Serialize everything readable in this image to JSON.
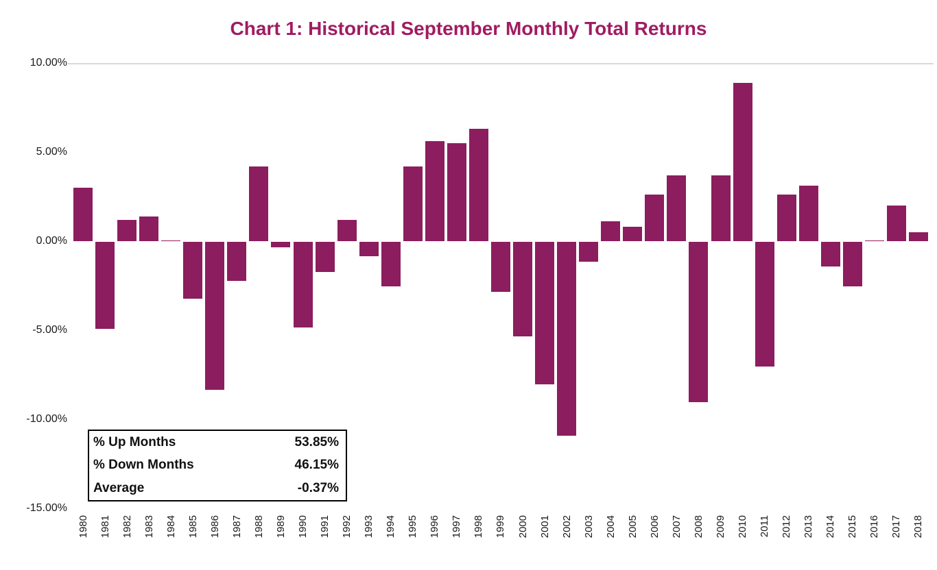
{
  "chart_data": {
    "type": "bar",
    "title": "Chart 1: Historical September Monthly Total Returns",
    "xlabel": "",
    "ylabel": "",
    "categories": [
      1980,
      1981,
      1982,
      1983,
      1984,
      1985,
      1986,
      1987,
      1988,
      1989,
      1990,
      1991,
      1992,
      1993,
      1994,
      1995,
      1996,
      1997,
      1998,
      1999,
      2000,
      2001,
      2002,
      2003,
      2004,
      2005,
      2006,
      2007,
      2008,
      2009,
      2010,
      2011,
      2012,
      2013,
      2014,
      2015,
      2016,
      2017,
      2018
    ],
    "values": [
      3.0,
      -4.9,
      1.2,
      1.4,
      0.02,
      -3.2,
      -8.3,
      -2.2,
      4.2,
      -0.3,
      -4.8,
      -1.7,
      1.2,
      -0.8,
      -2.5,
      4.2,
      5.6,
      5.5,
      6.3,
      -2.8,
      -5.3,
      -8.0,
      -10.9,
      -1.1,
      1.1,
      0.8,
      2.6,
      3.7,
      -9.0,
      3.7,
      8.9,
      -7.0,
      2.6,
      3.1,
      -1.4,
      -2.5,
      0.02,
      2.0,
      0.5
    ],
    "ylim": [
      -15,
      10
    ],
    "ytick_values": [
      10,
      5,
      0,
      -5,
      -10,
      -15
    ],
    "ytick_labels": [
      "10.00%",
      "5.00%",
      "0.00%",
      "-5.00%",
      "-10.00%",
      "-15.00%"
    ],
    "grid": false,
    "legend_position": "none"
  },
  "colors": {
    "bar": "#8C1D5E",
    "title": "#A01C62",
    "axis_line": "#D9D9D9"
  },
  "stats": {
    "rows": [
      {
        "label": "% Up Months",
        "value": "53.85%"
      },
      {
        "label": "% Down Months",
        "value": "46.15%"
      },
      {
        "label": "Average",
        "value": "-0.37%"
      }
    ]
  }
}
